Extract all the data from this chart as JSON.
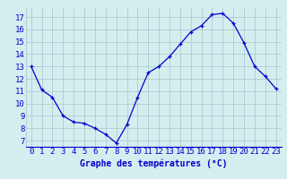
{
  "x": [
    0,
    1,
    2,
    3,
    4,
    5,
    6,
    7,
    8,
    9,
    10,
    11,
    12,
    13,
    14,
    15,
    16,
    17,
    18,
    19,
    20,
    21,
    22,
    23
  ],
  "y": [
    13.0,
    11.1,
    10.5,
    9.0,
    8.5,
    8.4,
    8.0,
    7.5,
    6.8,
    8.3,
    10.5,
    12.5,
    13.0,
    13.8,
    14.8,
    15.8,
    16.3,
    17.2,
    17.3,
    16.5,
    14.9,
    13.0,
    12.2,
    11.2
  ],
  "xlabel": "Graphe des températures (°C)",
  "ylim": [
    6.5,
    17.8
  ],
  "yticks": [
    7,
    8,
    9,
    10,
    11,
    12,
    13,
    14,
    15,
    16,
    17
  ],
  "xticks": [
    0,
    1,
    2,
    3,
    4,
    5,
    6,
    7,
    8,
    9,
    10,
    11,
    12,
    13,
    14,
    15,
    16,
    17,
    18,
    19,
    20,
    21,
    22,
    23
  ],
  "line_color": "#0000cc",
  "marker_color": "#0000cc",
  "bg_color": "#d4eef0",
  "grid_color": "#a0c8cc",
  "axis_label_color": "#0000cc",
  "tick_color": "#0000cc",
  "font_size_label": 7,
  "font_size_tick": 6.5
}
